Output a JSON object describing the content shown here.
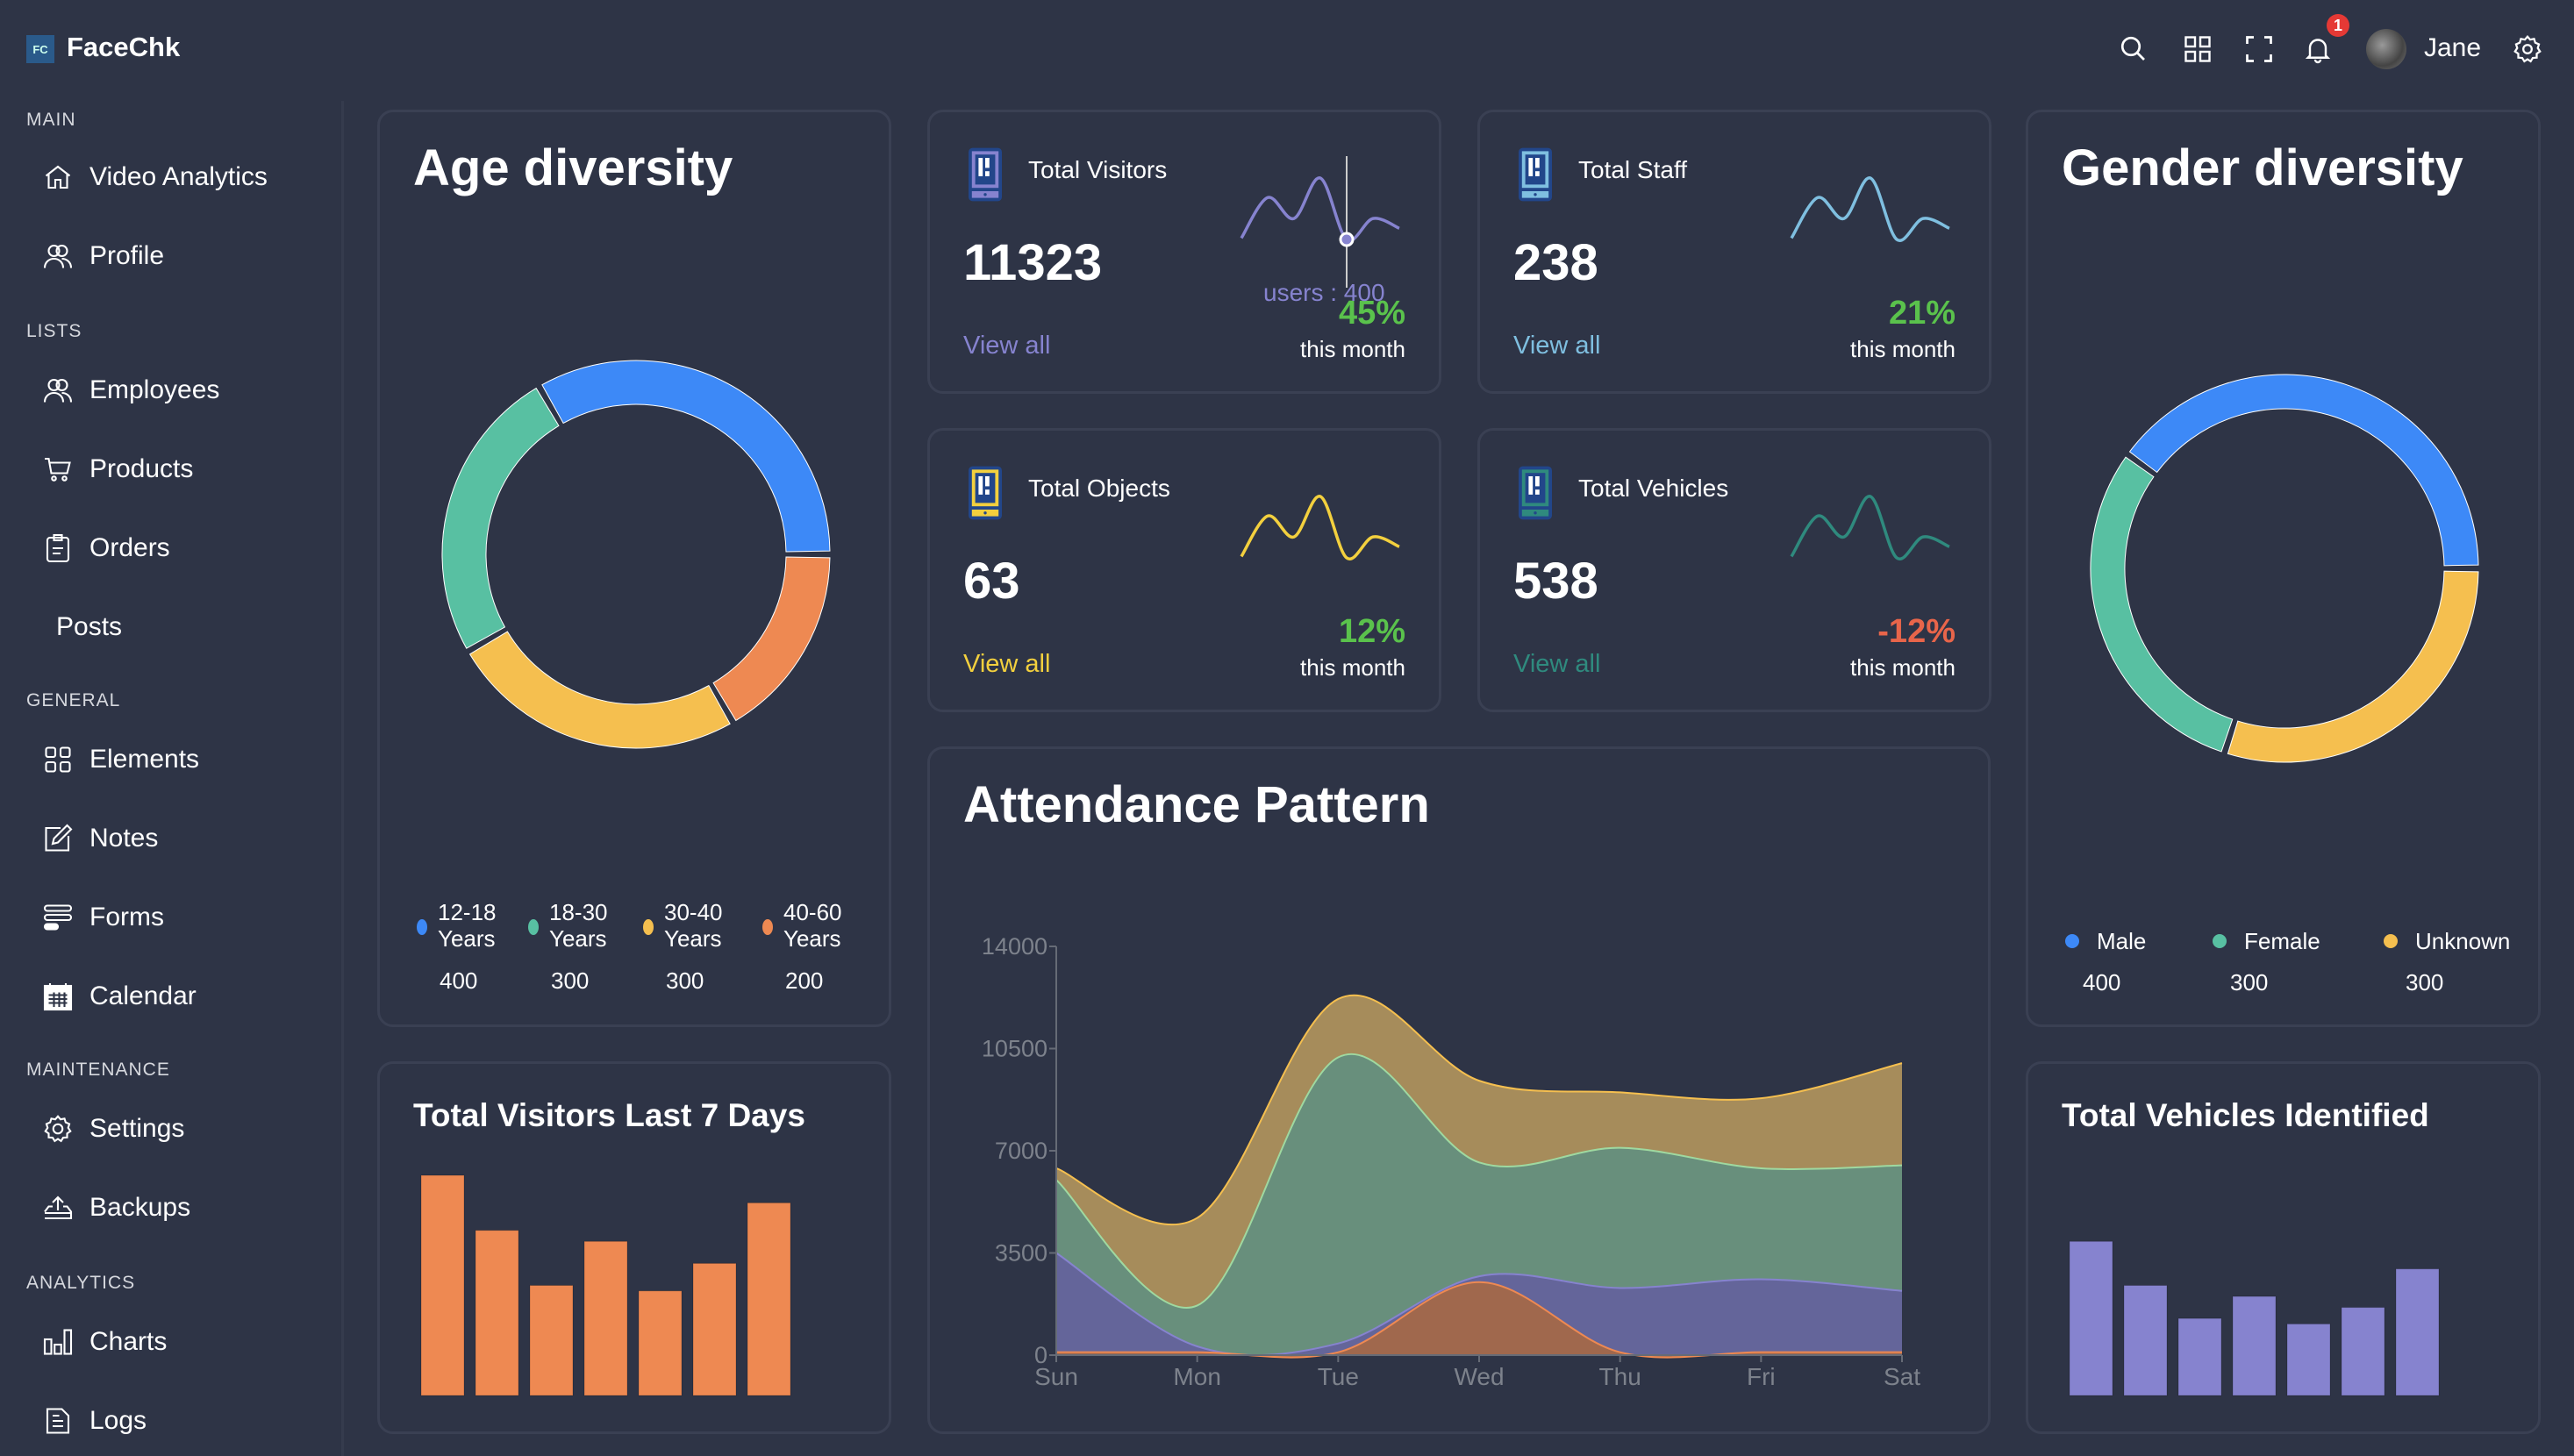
{
  "header": {
    "logo_text": "FC",
    "brand": "FaceChk",
    "user_name": "Jane",
    "notification_count": "1",
    "icons": [
      "search-icon",
      "grid-icon",
      "fullscreen-icon",
      "bell-icon",
      "gear-icon"
    ]
  },
  "sidebar": {
    "sections": [
      {
        "label": "MAIN",
        "items": [
          {
            "label": "Video Analytics",
            "icon": "home-icon"
          },
          {
            "label": "Profile",
            "icon": "users-icon"
          }
        ]
      },
      {
        "label": "LISTS",
        "items": [
          {
            "label": "Employees",
            "icon": "users-icon"
          },
          {
            "label": "Products",
            "icon": "cart-icon"
          },
          {
            "label": "Orders",
            "icon": "clipboard-icon"
          },
          {
            "label": "Posts",
            "icon": ""
          }
        ]
      },
      {
        "label": "GENERAL",
        "items": [
          {
            "label": "Elements",
            "icon": "grid-icon"
          },
          {
            "label": "Notes",
            "icon": "edit-icon"
          },
          {
            "label": "Forms",
            "icon": "form-icon"
          },
          {
            "label": "Calendar",
            "icon": "calendar-icon"
          }
        ]
      },
      {
        "label": "MAINTENANCE",
        "items": [
          {
            "label": "Settings",
            "icon": "gear-icon"
          },
          {
            "label": "Backups",
            "icon": "upload-tray-icon"
          }
        ]
      },
      {
        "label": "ANALYTICS",
        "items": [
          {
            "label": "Charts",
            "icon": "bar-chart-icon"
          },
          {
            "label": "Logs",
            "icon": "document-icon"
          }
        ]
      }
    ]
  },
  "stats": [
    {
      "title": "Total Visitors",
      "value": "11323",
      "link": "View all",
      "change": "45%",
      "period": "this month",
      "color": "#8683cf",
      "change_color": "#5ac24c",
      "sparkline": [
        410,
        700,
        550,
        840,
        400,
        550,
        480
      ],
      "tooltip": "users : 400"
    },
    {
      "title": "Total Staff",
      "value": "238",
      "link": "View all",
      "change": "21%",
      "period": "this month",
      "color": "#7fbfe0",
      "change_color": "#5ac24c",
      "sparkline": [
        410,
        700,
        550,
        840,
        400,
        550,
        480
      ]
    },
    {
      "title": "Total Objects",
      "value": "63",
      "link": "View all",
      "change": "12%",
      "period": "this month",
      "color": "#f3d03e",
      "change_color": "#5ac24c",
      "sparkline": [
        410,
        700,
        550,
        840,
        400,
        550,
        480
      ]
    },
    {
      "title": "Total Vehicles",
      "value": "538",
      "link": "View all",
      "change": "-12%",
      "period": "this month",
      "color": "#2f8a7e",
      "change_color": "#e8654a",
      "sparkline": [
        410,
        700,
        550,
        840,
        400,
        550,
        480
      ]
    }
  ],
  "chart_data": [
    {
      "type": "pie",
      "title": "Age diversity",
      "donut": true,
      "labels": [
        "12-18 Years",
        "18-30 Years",
        "30-40 Years",
        "40-60 Years"
      ],
      "label_lines": [
        [
          "12-18",
          "Years"
        ],
        [
          "18-30",
          "Years"
        ],
        [
          "30-40",
          "Years"
        ],
        [
          "40-60",
          "Years"
        ]
      ],
      "values": [
        400,
        300,
        300,
        200
      ],
      "colors": [
        "#3d89f7",
        "#58c0a2",
        "#f5bf4f",
        "#ee8952"
      ],
      "legend": "bottom"
    },
    {
      "type": "pie",
      "title": "Gender diversity",
      "donut": true,
      "labels": [
        "Male",
        "Female",
        "Unknown"
      ],
      "values": [
        400,
        300,
        300
      ],
      "colors": [
        "#3d89f7",
        "#58c0a2",
        "#f5bf4f"
      ],
      "legend": "bottom"
    },
    {
      "type": "area",
      "stacked": true,
      "title": "Attendance Pattern",
      "categories": [
        "Sun",
        "Mon",
        "Tue",
        "Wed",
        "Thu",
        "Fri",
        "Sat"
      ],
      "yticks": [
        "0",
        "3500",
        "7000",
        "10500",
        "14000"
      ],
      "ylim": [
        0,
        14000
      ],
      "series": [
        {
          "values": [
            100,
            100,
            100,
            2500,
            100,
            100,
            100
          ],
          "color": "#ee8952",
          "fill": "#a0684d"
        },
        {
          "values": [
            3400,
            200,
            300,
            200,
            2200,
            2500,
            2100
          ],
          "color": "#8683cf",
          "fill": "#64659a"
        },
        {
          "values": [
            2500,
            1400,
            9800,
            3900,
            4800,
            3800,
            4300
          ],
          "color": "#9fd9a0",
          "fill": "#688f7c"
        },
        {
          "values": [
            400,
            3000,
            2000,
            2800,
            1900,
            2400,
            3500
          ],
          "color": "#f5bf4f",
          "fill": "#a68c5b"
        }
      ]
    },
    {
      "type": "bar",
      "title": "Total Visitors Last 7 Days",
      "values": [
        40,
        30,
        20,
        28,
        19,
        24,
        35
      ],
      "ylim": [
        0,
        40
      ],
      "color": "#ee8952"
    },
    {
      "type": "bar",
      "title": "Total Vehicles Identified",
      "values": [
        28,
        20,
        14,
        18,
        13,
        16,
        23
      ],
      "ylim": [
        0,
        40
      ],
      "color": "#8683cf"
    }
  ]
}
